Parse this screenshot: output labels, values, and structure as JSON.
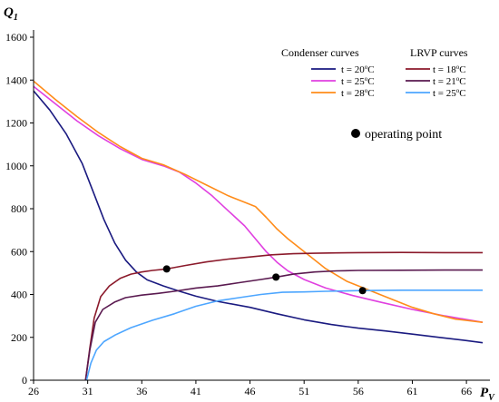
{
  "chart_data": {
    "type": "line",
    "title": "",
    "xlabel": "P",
    "xlabel_sub": "V",
    "ylabel": "Q",
    "ylabel_sub": "1",
    "xlim": [
      26,
      67.5
    ],
    "ylim": [
      0,
      1600
    ],
    "xticks": [
      26,
      31,
      36,
      41,
      46,
      51,
      56,
      61,
      66
    ],
    "yticks": [
      0,
      200,
      400,
      600,
      800,
      1000,
      1200,
      1400,
      1600
    ],
    "grid": false,
    "legend_groups": [
      {
        "title": "Condenser curves",
        "placement": "top-right",
        "entries": [
          {
            "label": "t = 20°C",
            "text": "t = 20",
            "sup": "o",
            "unit": "C",
            "color": "#1a1a80"
          },
          {
            "label": "t = 25°C",
            "text": "t = 25",
            "sup": "o",
            "unit": "C",
            "color": "#e040e0"
          },
          {
            "label": "t = 28°C",
            "text": "t = 28",
            "sup": "o",
            "unit": "C",
            "color": "#ff8c1a"
          }
        ]
      },
      {
        "title": "LRVP curves",
        "placement": "top-right",
        "entries": [
          {
            "label": "t = 18°C",
            "text": "t = 18",
            "sup": "o",
            "unit": "C",
            "color": "#8b1a2b"
          },
          {
            "label": "t = 21°C",
            "text": "t = 21",
            "sup": "o",
            "unit": "C",
            "color": "#5a1a50"
          },
          {
            "label": "t = 25°C",
            "text": "t = 25",
            "sup": "o",
            "unit": "C",
            "color": "#4da6ff"
          }
        ]
      }
    ],
    "annotation": {
      "label": "operating point"
    },
    "series": [
      {
        "group": "Condenser curves",
        "name": "t = 20°C",
        "color": "#1a1a80",
        "points": [
          [
            26,
            1350
          ],
          [
            27.5,
            1260
          ],
          [
            29,
            1150
          ],
          [
            30.5,
            1010
          ],
          [
            31.5,
            880
          ],
          [
            32.5,
            750
          ],
          [
            33.5,
            640
          ],
          [
            34.5,
            560
          ],
          [
            35.5,
            505
          ],
          [
            36.5,
            468
          ],
          [
            38,
            440
          ],
          [
            39.5,
            415
          ],
          [
            41,
            392
          ],
          [
            43,
            368
          ],
          [
            46,
            340
          ],
          [
            48.5,
            310
          ],
          [
            51,
            282
          ],
          [
            53.5,
            260
          ],
          [
            56,
            243
          ],
          [
            58.5,
            230
          ],
          [
            61,
            215
          ],
          [
            63.5,
            200
          ],
          [
            66,
            185
          ],
          [
            67.5,
            175
          ]
        ]
      },
      {
        "group": "Condenser curves",
        "name": "t = 25°C",
        "color": "#e040e0",
        "points": [
          [
            26,
            1370
          ],
          [
            28,
            1290
          ],
          [
            30,
            1210
          ],
          [
            32,
            1140
          ],
          [
            34,
            1080
          ],
          [
            36,
            1030
          ],
          [
            38,
            1000
          ],
          [
            39.5,
            970
          ],
          [
            41,
            920
          ],
          [
            42.5,
            860
          ],
          [
            44,
            790
          ],
          [
            45.5,
            720
          ],
          [
            46.5,
            660
          ],
          [
            47.5,
            600
          ],
          [
            48.5,
            550
          ],
          [
            49.5,
            510
          ],
          [
            51,
            470
          ],
          [
            53,
            430
          ],
          [
            55.5,
            395
          ],
          [
            58,
            365
          ],
          [
            61,
            330
          ],
          [
            64,
            300
          ],
          [
            67.5,
            270
          ]
        ]
      },
      {
        "group": "Condenser curves",
        "name": "t = 28°C",
        "color": "#ff8c1a",
        "points": [
          [
            26,
            1395
          ],
          [
            28,
            1310
          ],
          [
            30,
            1230
          ],
          [
            32,
            1155
          ],
          [
            34,
            1090
          ],
          [
            36,
            1035
          ],
          [
            38,
            1005
          ],
          [
            40,
            960
          ],
          [
            42,
            910
          ],
          [
            44,
            860
          ],
          [
            45.5,
            830
          ],
          [
            46.5,
            810
          ],
          [
            47.5,
            760
          ],
          [
            48.5,
            705
          ],
          [
            49.5,
            660
          ],
          [
            51,
            600
          ],
          [
            53,
            520
          ],
          [
            55,
            460
          ],
          [
            57,
            420
          ],
          [
            59,
            380
          ],
          [
            61,
            340
          ],
          [
            63,
            310
          ],
          [
            65,
            285
          ],
          [
            67.5,
            270
          ]
        ]
      },
      {
        "group": "LRVP curves",
        "name": "t = 18°C",
        "color": "#8b1a2b",
        "points": [
          [
            30.8,
            0
          ],
          [
            31.2,
            150
          ],
          [
            31.6,
            290
          ],
          [
            32.2,
            390
          ],
          [
            33,
            440
          ],
          [
            34,
            475
          ],
          [
            35,
            495
          ],
          [
            36,
            505
          ],
          [
            37,
            512
          ],
          [
            38.3,
            519
          ],
          [
            40,
            535
          ],
          [
            42,
            552
          ],
          [
            44,
            565
          ],
          [
            46,
            575
          ],
          [
            48,
            585
          ],
          [
            50,
            590
          ],
          [
            52,
            592
          ],
          [
            54,
            594
          ],
          [
            56,
            595
          ],
          [
            60,
            596
          ],
          [
            64,
            595
          ],
          [
            67.5,
            595
          ]
        ]
      },
      {
        "group": "LRVP curves",
        "name": "t = 21°C",
        "color": "#5a1a50",
        "points": [
          [
            30.8,
            0
          ],
          [
            31.2,
            140
          ],
          [
            31.7,
            270
          ],
          [
            32.4,
            330
          ],
          [
            33.5,
            365
          ],
          [
            34.5,
            385
          ],
          [
            36,
            397
          ],
          [
            37.5,
            405
          ],
          [
            39,
            415
          ],
          [
            41,
            430
          ],
          [
            43,
            440
          ],
          [
            45,
            455
          ],
          [
            47,
            470
          ],
          [
            48.4,
            481
          ],
          [
            50,
            495
          ],
          [
            52,
            505
          ],
          [
            54,
            510
          ],
          [
            56,
            512
          ],
          [
            60,
            513
          ],
          [
            64,
            514
          ],
          [
            67.5,
            514
          ]
        ]
      },
      {
        "group": "LRVP curves",
        "name": "t = 25°C",
        "color": "#4da6ff",
        "points": [
          [
            30.9,
            0
          ],
          [
            31.3,
            80
          ],
          [
            31.8,
            140
          ],
          [
            32.5,
            180
          ],
          [
            33.5,
            210
          ],
          [
            35,
            245
          ],
          [
            37,
            280
          ],
          [
            39,
            310
          ],
          [
            41,
            345
          ],
          [
            43,
            370
          ],
          [
            45,
            385
          ],
          [
            47,
            400
          ],
          [
            49,
            410
          ],
          [
            51,
            412
          ],
          [
            53,
            415
          ],
          [
            56.4,
            418
          ],
          [
            60,
            420
          ],
          [
            64,
            420
          ],
          [
            67.5,
            420
          ]
        ]
      }
    ],
    "operating_points": [
      {
        "x": 38.3,
        "y": 519
      },
      {
        "x": 48.4,
        "y": 481
      },
      {
        "x": 56.4,
        "y": 418
      }
    ]
  }
}
